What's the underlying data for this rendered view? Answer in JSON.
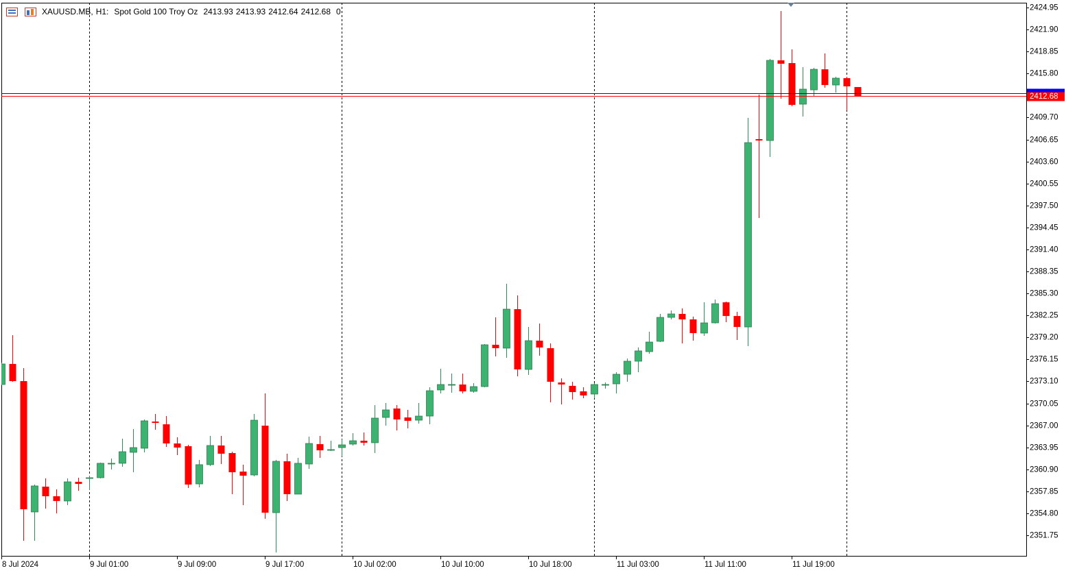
{
  "chart_data": {
    "type": "candlestick",
    "symbol": "XAUUSD.MB,",
    "timeframe": "H1:",
    "description": "Spot Gold 100 Troy Oz",
    "tick_volume": 0,
    "categories": [
      "8 Jul 2024",
      null,
      null,
      null,
      null,
      null,
      null,
      null,
      "9 Jul 01:00",
      null,
      null,
      null,
      null,
      null,
      null,
      null,
      "9 Jul 09:00",
      null,
      null,
      null,
      null,
      null,
      null,
      null,
      "9 Jul 17:00",
      null,
      null,
      null,
      null,
      null,
      null,
      null,
      "10 Jul 02:00",
      null,
      null,
      null,
      null,
      null,
      null,
      null,
      "10 Jul 10:00",
      null,
      null,
      null,
      null,
      null,
      null,
      null,
      "10 Jul 18:00",
      null,
      null,
      null,
      null,
      null,
      null,
      null,
      "11 Jul 03:00",
      null,
      null,
      null,
      null,
      null,
      null,
      null,
      "11 Jul 11:00",
      null,
      null,
      null,
      null,
      null,
      null,
      null,
      "11 Jul 19:00",
      null,
      null,
      null,
      null,
      null,
      null
    ],
    "open": [
      2372.67,
      2375.52,
      2373.14,
      2354.99,
      2358.5,
      2357.17,
      2356.51,
      2359.17,
      2359.64,
      2359.74,
      2361.64,
      2361.74,
      2363.26,
      2363.83,
      2367.53,
      2367.15,
      2364.49,
      2364.11,
      2358.88,
      2361.55,
      2364.21,
      2363.16,
      2360.59,
      2360.12,
      2366.96,
      2354.89,
      2362.02,
      2357.46,
      2361.64,
      2364.4,
      2363.54,
      2363.92,
      2364.4,
      2364.87,
      2364.59,
      2368.1,
      2369.34,
      2368.1,
      2367.72,
      2368.29,
      2371.91,
      2372.57,
      2372.67,
      2371.72,
      2372.38,
      2378.18,
      2377.71,
      2383.12,
      2374.76,
      2378.75,
      2377.71,
      2372.95,
      2372.48,
      2371.72,
      2371.34,
      2372.57,
      2372.76,
      2374.09,
      2375.9,
      2377.23,
      2378.66,
      2381.98,
      2382.46,
      2381.7,
      2379.8,
      2381.22,
      2384.07,
      2382.17,
      2380.65,
      2406.7,
      2406.51,
      2417.63,
      2417.25,
      2411.55,
      2413.54,
      2416.39,
      2414.21,
      2415.16,
      2413.93
    ],
    "high": [
      2375.71,
      2379.51,
      2374.95,
      2358.79,
      2359.64,
      2358.12,
      2359.64,
      2359.74,
      2360.02,
      2361.83,
      2362.4,
      2365.16,
      2366.49,
      2367.82,
      2368.58,
      2368.29,
      2365.35,
      2364.3,
      2362.21,
      2365.54,
      2365.54,
      2363.35,
      2361.55,
      2368.58,
      2371.43,
      2362.21,
      2363.07,
      2362.5,
      2365.44,
      2365.54,
      2364.87,
      2365.06,
      2365.92,
      2366.01,
      2369.82,
      2370.1,
      2369.82,
      2369.15,
      2370.1,
      2372.29,
      2374.85,
      2374.19,
      2374.19,
      2372.86,
      2378.28,
      2381.98,
      2386.64,
      2385.02,
      2380.65,
      2381.13,
      2378.37,
      2373.52,
      2373.05,
      2372.29,
      2372.86,
      2372.95,
      2374.38,
      2376.28,
      2377.8,
      2379.99,
      2382.46,
      2382.93,
      2383.22,
      2382.08,
      2384.07,
      2384.45,
      2384.17,
      2382.74,
      2409.65,
      2412.88,
      2417.82,
      2424.47,
      2419.15,
      2416.68,
      2416.59,
      2418.58,
      2415.35,
      2415.35,
      2413.93
    ],
    "low": [
      2372.57,
      2373.05,
      2350.99,
      2350.99,
      2355.46,
      2354.8,
      2355.94,
      2357.93,
      2358.03,
      2359.64,
      2360.88,
      2361.26,
      2360.5,
      2363.26,
      2366.39,
      2364.02,
      2362.88,
      2358.31,
      2358.41,
      2361.36,
      2361.64,
      2357.46,
      2355.94,
      2359.93,
      2354.04,
      2349.38,
      2356.51,
      2357.46,
      2360.97,
      2362.5,
      2363.45,
      2362.69,
      2364.21,
      2364.21,
      2363.16,
      2366.96,
      2366.3,
      2366.58,
      2367.25,
      2367.15,
      2371.43,
      2371.53,
      2371.43,
      2371.53,
      2372.29,
      2376.56,
      2376.37,
      2373.81,
      2374.0,
      2376.66,
      2370.2,
      2369.91,
      2370.58,
      2370.77,
      2370.77,
      2372.1,
      2371.43,
      2373.05,
      2374.38,
      2376.94,
      2378.56,
      2381.7,
      2378.37,
      2378.75,
      2379.42,
      2381.13,
      2381.32,
      2378.85,
      2377.99,
      2395.77,
      2404.23,
      2412.31,
      2411.26,
      2409.84,
      2412.69,
      2413.83,
      2413.16,
      2410.69,
      2412.64
    ],
    "close": [
      2375.52,
      2373.14,
      2355.37,
      2358.6,
      2357.17,
      2356.51,
      2359.17,
      2358.88,
      2359.74,
      2361.74,
      2361.74,
      2363.35,
      2363.92,
      2367.63,
      2367.34,
      2364.49,
      2363.92,
      2358.79,
      2361.55,
      2364.21,
      2363.07,
      2360.5,
      2360.02,
      2367.72,
      2354.89,
      2362.02,
      2357.46,
      2361.74,
      2364.49,
      2363.54,
      2363.64,
      2364.3,
      2364.87,
      2364.59,
      2368.01,
      2369.15,
      2367.82,
      2367.63,
      2368.29,
      2371.81,
      2372.67,
      2372.67,
      2371.72,
      2372.38,
      2378.18,
      2377.71,
      2383.12,
      2374.76,
      2378.75,
      2377.8,
      2373.05,
      2372.67,
      2371.62,
      2371.15,
      2372.67,
      2372.67,
      2374.09,
      2375.9,
      2377.33,
      2378.56,
      2381.98,
      2382.46,
      2381.7,
      2379.8,
      2381.22,
      2383.88,
      2382.17,
      2380.65,
      2406.22,
      2406.51,
      2417.63,
      2417.16,
      2411.45,
      2413.64,
      2416.39,
      2414.21,
      2415.16,
      2414.02,
      2412.68
    ],
    "up_color": "#3cb371",
    "down_color": "#ff0000",
    "ask": 2413.06,
    "ask_color": "#0000ff",
    "bid_color": "#ff0000",
    "ylim": [
      2348.9,
      2425.62
    ],
    "yticks": [
      2424.95,
      {
        "value": 2421.9,
        "label": "2421.90"
      },
      2418.85,
      {
        "value": 2415.8,
        "label": "2415.80"
      },
      2412.75,
      {
        "value": 2409.7,
        "label": "2409.70"
      },
      2406.65,
      {
        "value": 2403.6,
        "label": "2403.60"
      },
      2400.55,
      {
        "value": 2397.5,
        "label": "2397.50"
      },
      2394.45,
      {
        "value": 2391.4,
        "label": "2391.40"
      },
      2388.35,
      {
        "value": 2385.3,
        "label": "2385.30"
      },
      2382.25,
      {
        "value": 2379.2,
        "label": "2379.20"
      },
      2376.15,
      {
        "value": 2373.1,
        "label": "2373.10"
      },
      2370.05,
      {
        "value": 2367,
        "label": "2367.00"
      },
      2363.95,
      {
        "value": 2360.9,
        "label": "2360.90"
      },
      2357.85,
      {
        "value": 2354.8,
        "label": "2354.80"
      },
      2351.75
    ]
  }
}
